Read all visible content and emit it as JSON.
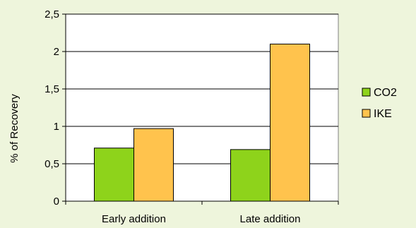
{
  "chart_data": {
    "type": "bar",
    "categories": [
      "Early addition",
      "Late addition"
    ],
    "series": [
      {
        "name": "CO2",
        "values": [
          0.71,
          0.69
        ],
        "color": "#8ed31b"
      },
      {
        "name": "IKE",
        "values": [
          0.97,
          2.1
        ],
        "color": "#ffc34d"
      }
    ],
    "ylabel": "% of Recovery",
    "ylim": [
      0,
      2.5
    ],
    "yticks": [
      0,
      0.5,
      1,
      1.5,
      2,
      2.5
    ],
    "ytick_labels": [
      "0",
      "0,5",
      "1",
      "1,5",
      "2",
      "2,5"
    ],
    "grid": true,
    "legend_position": "right",
    "plot_background": "#ffffff",
    "page_background": "#eef5dc"
  }
}
